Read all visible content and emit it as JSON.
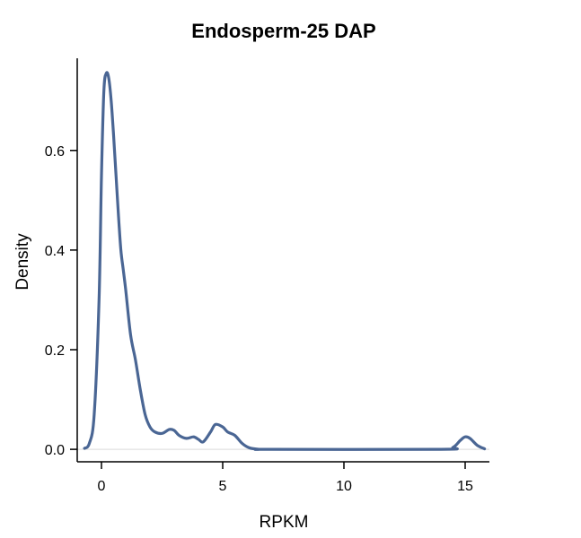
{
  "chart_data": {
    "type": "line",
    "title": "Endosperm-25 DAP",
    "xlabel": "RPKM",
    "ylabel": "Density",
    "xlim": [
      -1.0,
      16.0
    ],
    "ylim": [
      -0.025,
      0.785
    ],
    "x_ticks": [
      0,
      5,
      10,
      15
    ],
    "x_tick_labels": [
      "0",
      "5",
      "10",
      "15"
    ],
    "y_ticks": [
      0.0,
      0.2,
      0.4,
      0.6
    ],
    "y_tick_labels": [
      "0.0",
      "0.2",
      "0.4",
      "0.6"
    ],
    "grid": false,
    "baseline": 0.0,
    "colors": {
      "line": "#4a6694",
      "baseline": "#d9d9d9",
      "axis": "#000000"
    },
    "series": [
      {
        "x": [
          -0.7,
          -0.5,
          -0.3,
          -0.1,
          0.0,
          0.1,
          0.2,
          0.3,
          0.4,
          0.5,
          0.6,
          0.7,
          0.8,
          0.9,
          1.0,
          1.2,
          1.4,
          1.6,
          1.8,
          2.0,
          2.2,
          2.5,
          2.8,
          3.0,
          3.2,
          3.5,
          3.8,
          4.0,
          4.2,
          4.5,
          4.7,
          5.0,
          5.2,
          5.5,
          5.8,
          6.1,
          6.5,
          7.0,
          14.0,
          14.5,
          14.8,
          15.0,
          15.2,
          15.5,
          15.8
        ],
        "y": [
          0.002,
          0.012,
          0.07,
          0.3,
          0.55,
          0.72,
          0.755,
          0.745,
          0.7,
          0.63,
          0.55,
          0.47,
          0.4,
          0.36,
          0.32,
          0.23,
          0.18,
          0.12,
          0.07,
          0.045,
          0.035,
          0.032,
          0.04,
          0.038,
          0.028,
          0.022,
          0.025,
          0.02,
          0.015,
          0.035,
          0.05,
          0.045,
          0.035,
          0.028,
          0.012,
          0.003,
          0.0,
          0.0,
          0.0,
          0.004,
          0.018,
          0.025,
          0.022,
          0.008,
          0.001
        ]
      }
    ]
  }
}
